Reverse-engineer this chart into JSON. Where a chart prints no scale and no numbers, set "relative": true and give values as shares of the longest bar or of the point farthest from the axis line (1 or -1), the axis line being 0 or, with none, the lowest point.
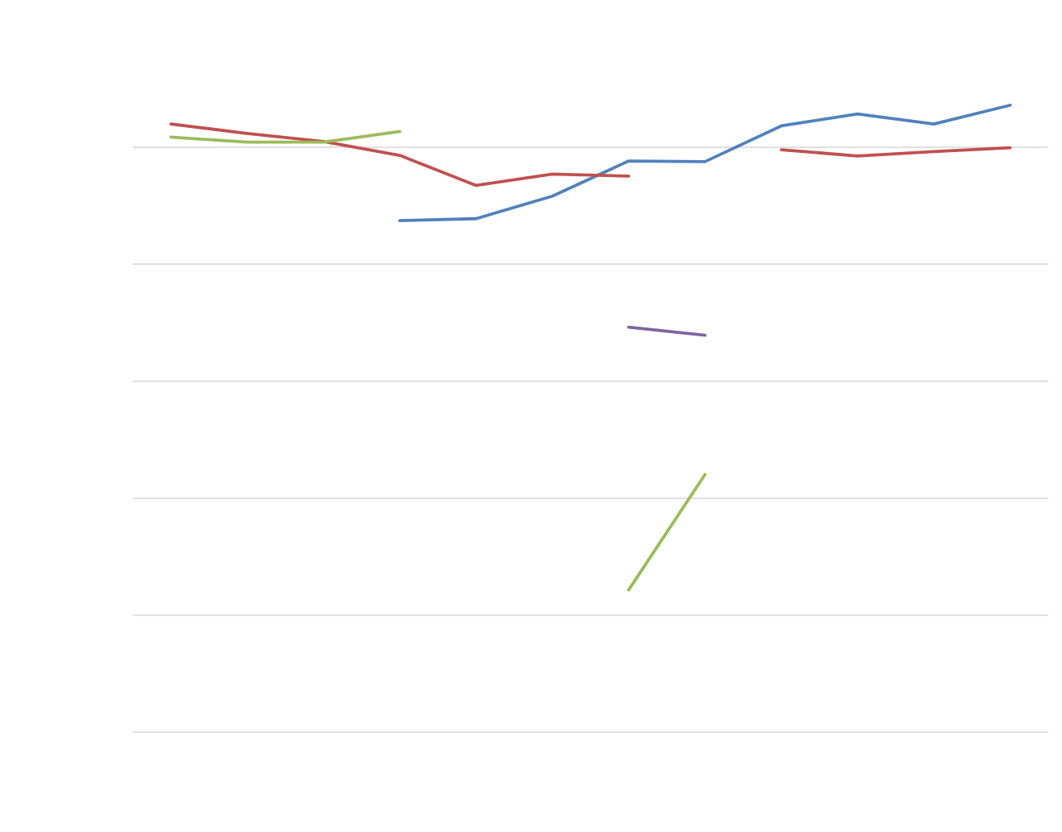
{
  "chart_data": {
    "type": "line",
    "relative": true,
    "grid": "y",
    "categories": [
      null,
      null,
      null,
      null,
      null,
      null,
      null,
      null,
      null,
      null,
      null,
      null
    ],
    "series": [
      {
        "color": "#4f81bd",
        "values": [
          null,
          null,
          null,
          0.816,
          0.819,
          0.855,
          0.911,
          0.91,
          0.967,
          0.986,
          0.97,
          1
        ]
      },
      {
        "color": "#c0504d",
        "values": [
          0.97,
          0.955,
          0.942,
          0.92,
          0.872,
          0.89,
          0.887,
          null,
          0.929,
          0.919,
          0.926,
          0.932
        ]
      },
      {
        "color": "#9bbb59",
        "values": [
          0.949,
          0.941,
          0.941,
          0.958,
          null,
          null,
          0.227,
          0.411,
          null,
          null,
          null,
          null
        ]
      },
      {
        "color": "#8064a2",
        "values": [
          null,
          null,
          null,
          null,
          null,
          null,
          0.646,
          0.633,
          null,
          null,
          null,
          null
        ]
      }
    ]
  }
}
